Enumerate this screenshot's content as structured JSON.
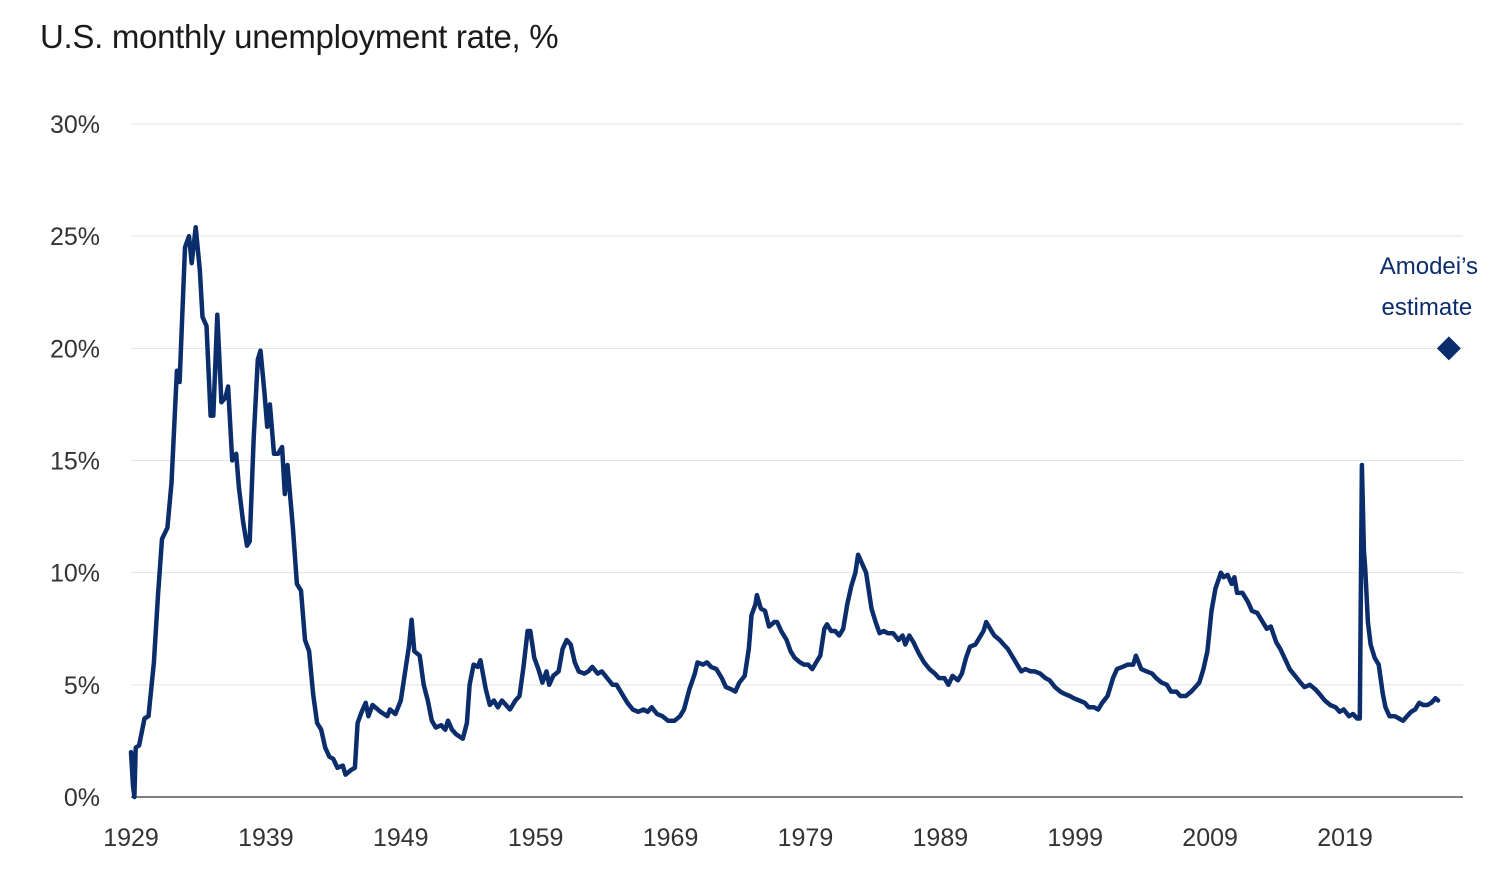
{
  "chart_data": {
    "type": "line",
    "title": "U.S. monthly unemployment rate, %",
    "xlabel": "",
    "ylabel": "",
    "xlim": [
      1929,
      2027.7
    ],
    "ylim": [
      0,
      30
    ],
    "x_ticks": [
      1929,
      1939,
      1949,
      1959,
      1969,
      1979,
      1989,
      1999,
      2009,
      2019
    ],
    "y_ticks": [
      0,
      5,
      10,
      15,
      20,
      25,
      30
    ],
    "y_tick_labels": [
      "0%",
      "5%",
      "10%",
      "15%",
      "20%",
      "25%",
      "30%"
    ],
    "grid": "horizontal",
    "line_color": "#0b2d6b",
    "series": [
      {
        "points": [
          [
            1929.0,
            2.0
          ],
          [
            1929.15,
            0.5
          ],
          [
            1929.25,
            0.0
          ],
          [
            1929.35,
            2.2
          ],
          [
            1929.6,
            2.3
          ],
          [
            1930.0,
            3.5
          ],
          [
            1930.3,
            3.6
          ],
          [
            1930.7,
            6
          ],
          [
            1931.0,
            9
          ],
          [
            1931.3,
            11.5
          ],
          [
            1931.7,
            12
          ],
          [
            1932.0,
            14
          ],
          [
            1932.4,
            19
          ],
          [
            1932.6,
            18.5
          ],
          [
            1933.0,
            24.5
          ],
          [
            1933.3,
            25.0
          ],
          [
            1933.5,
            23.8
          ],
          [
            1933.8,
            25.4
          ],
          [
            1934.1,
            23.5
          ],
          [
            1934.3,
            21.4
          ],
          [
            1934.6,
            21.0
          ],
          [
            1934.9,
            17
          ],
          [
            1935.1,
            17.0
          ],
          [
            1935.4,
            21.5
          ],
          [
            1935.7,
            17.6
          ],
          [
            1936.0,
            17.8
          ],
          [
            1936.2,
            18.3
          ],
          [
            1936.5,
            15.0
          ],
          [
            1936.8,
            15.3
          ],
          [
            1937.0,
            13.8
          ],
          [
            1937.3,
            12.3
          ],
          [
            1937.6,
            11.2
          ],
          [
            1937.8,
            11.4
          ],
          [
            1938.1,
            16
          ],
          [
            1938.4,
            19.5
          ],
          [
            1938.6,
            19.9
          ],
          [
            1938.9,
            18
          ],
          [
            1939.1,
            16.5
          ],
          [
            1939.3,
            17.5
          ],
          [
            1939.6,
            15.3
          ],
          [
            1939.9,
            15.3
          ],
          [
            1940.2,
            15.6
          ],
          [
            1940.4,
            13.5
          ],
          [
            1940.6,
            14.8
          ],
          [
            1940.8,
            13.4
          ],
          [
            1941.0,
            12
          ],
          [
            1941.3,
            9.5
          ],
          [
            1941.6,
            9.2
          ],
          [
            1941.9,
            7
          ],
          [
            1942.2,
            6.5
          ],
          [
            1942.5,
            4.6
          ],
          [
            1942.8,
            3.3
          ],
          [
            1943.1,
            3.0
          ],
          [
            1943.4,
            2.2
          ],
          [
            1943.7,
            1.8
          ],
          [
            1944.0,
            1.7
          ],
          [
            1944.3,
            1.3
          ],
          [
            1944.7,
            1.4
          ],
          [
            1944.9,
            1.0
          ],
          [
            1945.3,
            1.2
          ],
          [
            1945.6,
            1.3
          ],
          [
            1945.8,
            3.3
          ],
          [
            1946.1,
            3.8
          ],
          [
            1946.4,
            4.2
          ],
          [
            1946.6,
            3.6
          ],
          [
            1946.9,
            4.1
          ],
          [
            1947.5,
            3.8
          ],
          [
            1948.0,
            3.6
          ],
          [
            1948.2,
            3.9
          ],
          [
            1948.6,
            3.7
          ],
          [
            1949.0,
            4.3
          ],
          [
            1949.4,
            5.9
          ],
          [
            1949.6,
            6.7
          ],
          [
            1949.8,
            7.9
          ],
          [
            1950.0,
            6.5
          ],
          [
            1950.4,
            6.3
          ],
          [
            1950.7,
            5.0
          ],
          [
            1951.0,
            4.3
          ],
          [
            1951.3,
            3.4
          ],
          [
            1951.6,
            3.1
          ],
          [
            1952.0,
            3.2
          ],
          [
            1952.3,
            3.0
          ],
          [
            1952.5,
            3.4
          ],
          [
            1952.8,
            3.0
          ],
          [
            1953.1,
            2.8
          ],
          [
            1953.6,
            2.6
          ],
          [
            1953.9,
            3.3
          ],
          [
            1954.1,
            5.0
          ],
          [
            1954.4,
            5.9
          ],
          [
            1954.7,
            5.8
          ],
          [
            1954.9,
            6.1
          ],
          [
            1955.3,
            4.8
          ],
          [
            1955.6,
            4.1
          ],
          [
            1955.9,
            4.3
          ],
          [
            1956.2,
            4.0
          ],
          [
            1956.5,
            4.3
          ],
          [
            1956.8,
            4.1
          ],
          [
            1957.1,
            3.9
          ],
          [
            1957.5,
            4.3
          ],
          [
            1957.8,
            4.5
          ],
          [
            1958.1,
            5.8
          ],
          [
            1958.4,
            7.4
          ],
          [
            1958.6,
            7.4
          ],
          [
            1958.9,
            6.2
          ],
          [
            1959.2,
            5.7
          ],
          [
            1959.5,
            5.1
          ],
          [
            1959.8,
            5.6
          ],
          [
            1960.0,
            5.0
          ],
          [
            1960.3,
            5.4
          ],
          [
            1960.7,
            5.6
          ],
          [
            1961.0,
            6.6
          ],
          [
            1961.3,
            7.0
          ],
          [
            1961.6,
            6.8
          ],
          [
            1961.9,
            6.0
          ],
          [
            1962.2,
            5.6
          ],
          [
            1962.6,
            5.5
          ],
          [
            1962.9,
            5.6
          ],
          [
            1963.2,
            5.8
          ],
          [
            1963.6,
            5.5
          ],
          [
            1963.9,
            5.6
          ],
          [
            1964.3,
            5.3
          ],
          [
            1964.7,
            5.0
          ],
          [
            1965.0,
            5.0
          ],
          [
            1965.4,
            4.6
          ],
          [
            1965.8,
            4.2
          ],
          [
            1966.2,
            3.9
          ],
          [
            1966.6,
            3.8
          ],
          [
            1967.0,
            3.9
          ],
          [
            1967.3,
            3.8
          ],
          [
            1967.6,
            4.0
          ],
          [
            1968.0,
            3.7
          ],
          [
            1968.4,
            3.6
          ],
          [
            1968.8,
            3.4
          ],
          [
            1969.3,
            3.4
          ],
          [
            1969.7,
            3.6
          ],
          [
            1970.0,
            3.9
          ],
          [
            1970.4,
            4.8
          ],
          [
            1970.8,
            5.5
          ],
          [
            1971.0,
            6.0
          ],
          [
            1971.4,
            5.9
          ],
          [
            1971.7,
            6.0
          ],
          [
            1972.0,
            5.8
          ],
          [
            1972.4,
            5.7
          ],
          [
            1972.8,
            5.3
          ],
          [
            1973.1,
            4.9
          ],
          [
            1973.5,
            4.8
          ],
          [
            1973.8,
            4.7
          ],
          [
            1974.1,
            5.1
          ],
          [
            1974.5,
            5.4
          ],
          [
            1974.8,
            6.6
          ],
          [
            1975.0,
            8.1
          ],
          [
            1975.3,
            8.6
          ],
          [
            1975.4,
            9.0
          ],
          [
            1975.7,
            8.4
          ],
          [
            1976.0,
            8.3
          ],
          [
            1976.3,
            7.6
          ],
          [
            1976.7,
            7.8
          ],
          [
            1976.9,
            7.8
          ],
          [
            1977.2,
            7.4
          ],
          [
            1977.6,
            7.0
          ],
          [
            1977.9,
            6.5
          ],
          [
            1978.2,
            6.2
          ],
          [
            1978.6,
            6.0
          ],
          [
            1978.9,
            5.9
          ],
          [
            1979.2,
            5.9
          ],
          [
            1979.5,
            5.7
          ],
          [
            1979.8,
            6.0
          ],
          [
            1980.1,
            6.3
          ],
          [
            1980.4,
            7.5
          ],
          [
            1980.6,
            7.7
          ],
          [
            1980.9,
            7.4
          ],
          [
            1981.2,
            7.4
          ],
          [
            1981.5,
            7.2
          ],
          [
            1981.8,
            7.5
          ],
          [
            1982.1,
            8.6
          ],
          [
            1982.4,
            9.4
          ],
          [
            1982.7,
            10.0
          ],
          [
            1982.9,
            10.8
          ],
          [
            1983.2,
            10.4
          ],
          [
            1983.5,
            10.0
          ],
          [
            1983.7,
            9.2
          ],
          [
            1983.9,
            8.4
          ],
          [
            1984.2,
            7.8
          ],
          [
            1984.5,
            7.3
          ],
          [
            1984.8,
            7.4
          ],
          [
            1985.1,
            7.3
          ],
          [
            1985.5,
            7.3
          ],
          [
            1985.9,
            7.0
          ],
          [
            1986.2,
            7.2
          ],
          [
            1986.4,
            6.8
          ],
          [
            1986.7,
            7.2
          ],
          [
            1987.0,
            6.9
          ],
          [
            1987.4,
            6.4
          ],
          [
            1987.8,
            6.0
          ],
          [
            1988.2,
            5.7
          ],
          [
            1988.6,
            5.5
          ],
          [
            1988.9,
            5.3
          ],
          [
            1989.3,
            5.3
          ],
          [
            1989.6,
            5.0
          ],
          [
            1989.9,
            5.4
          ],
          [
            1990.3,
            5.2
          ],
          [
            1990.6,
            5.5
          ],
          [
            1990.9,
            6.2
          ],
          [
            1991.2,
            6.7
          ],
          [
            1991.6,
            6.8
          ],
          [
            1991.9,
            7.1
          ],
          [
            1992.2,
            7.4
          ],
          [
            1992.4,
            7.8
          ],
          [
            1992.7,
            7.5
          ],
          [
            1993.0,
            7.2
          ],
          [
            1993.4,
            7.0
          ],
          [
            1993.7,
            6.8
          ],
          [
            1994.0,
            6.6
          ],
          [
            1994.4,
            6.2
          ],
          [
            1994.7,
            5.9
          ],
          [
            1995.0,
            5.6
          ],
          [
            1995.3,
            5.7
          ],
          [
            1995.7,
            5.6
          ],
          [
            1996.0,
            5.6
          ],
          [
            1996.4,
            5.5
          ],
          [
            1996.8,
            5.3
          ],
          [
            1997.1,
            5.2
          ],
          [
            1997.5,
            4.9
          ],
          [
            1997.9,
            4.7
          ],
          [
            1998.2,
            4.6
          ],
          [
            1998.6,
            4.5
          ],
          [
            1998.9,
            4.4
          ],
          [
            1999.3,
            4.3
          ],
          [
            1999.7,
            4.2
          ],
          [
            2000.0,
            4.0
          ],
          [
            2000.4,
            4.0
          ],
          [
            2000.7,
            3.9
          ],
          [
            2001.0,
            4.2
          ],
          [
            2001.4,
            4.5
          ],
          [
            2001.8,
            5.3
          ],
          [
            2002.1,
            5.7
          ],
          [
            2002.5,
            5.8
          ],
          [
            2002.9,
            5.9
          ],
          [
            2003.3,
            5.9
          ],
          [
            2003.5,
            6.3
          ],
          [
            2003.9,
            5.7
          ],
          [
            2004.3,
            5.6
          ],
          [
            2004.7,
            5.5
          ],
          [
            2005.0,
            5.3
          ],
          [
            2005.4,
            5.1
          ],
          [
            2005.8,
            5.0
          ],
          [
            2006.1,
            4.7
          ],
          [
            2006.5,
            4.7
          ],
          [
            2006.8,
            4.5
          ],
          [
            2007.2,
            4.5
          ],
          [
            2007.6,
            4.7
          ],
          [
            2007.9,
            4.9
          ],
          [
            2008.2,
            5.1
          ],
          [
            2008.5,
            5.7
          ],
          [
            2008.8,
            6.5
          ],
          [
            2009.1,
            8.3
          ],
          [
            2009.4,
            9.3
          ],
          [
            2009.8,
            10.0
          ],
          [
            2010.0,
            9.8
          ],
          [
            2010.3,
            9.9
          ],
          [
            2010.6,
            9.5
          ],
          [
            2010.8,
            9.8
          ],
          [
            2011.0,
            9.1
          ],
          [
            2011.4,
            9.1
          ],
          [
            2011.8,
            8.7
          ],
          [
            2012.1,
            8.3
          ],
          [
            2012.5,
            8.2
          ],
          [
            2012.9,
            7.8
          ],
          [
            2013.2,
            7.5
          ],
          [
            2013.5,
            7.6
          ],
          [
            2013.9,
            6.9
          ],
          [
            2014.2,
            6.6
          ],
          [
            2014.6,
            6.1
          ],
          [
            2014.9,
            5.7
          ],
          [
            2015.3,
            5.4
          ],
          [
            2015.7,
            5.1
          ],
          [
            2016.0,
            4.9
          ],
          [
            2016.4,
            5.0
          ],
          [
            2016.8,
            4.8
          ],
          [
            2017.1,
            4.6
          ],
          [
            2017.5,
            4.3
          ],
          [
            2017.9,
            4.1
          ],
          [
            2018.3,
            4.0
          ],
          [
            2018.6,
            3.8
          ],
          [
            2018.9,
            3.9
          ],
          [
            2019.3,
            3.6
          ],
          [
            2019.6,
            3.7
          ],
          [
            2019.9,
            3.5
          ],
          [
            2020.1,
            3.5
          ],
          [
            2020.25,
            14.8
          ],
          [
            2020.4,
            11.0
          ],
          [
            2020.5,
            10.2
          ],
          [
            2020.7,
            7.8
          ],
          [
            2020.9,
            6.8
          ],
          [
            2021.2,
            6.2
          ],
          [
            2021.5,
            5.9
          ],
          [
            2021.8,
            4.6
          ],
          [
            2022.0,
            4.0
          ],
          [
            2022.3,
            3.6
          ],
          [
            2022.7,
            3.6
          ],
          [
            2023.0,
            3.5
          ],
          [
            2023.3,
            3.4
          ],
          [
            2023.6,
            3.6
          ],
          [
            2023.9,
            3.8
          ],
          [
            2024.2,
            3.9
          ],
          [
            2024.5,
            4.2
          ],
          [
            2024.8,
            4.1
          ],
          [
            2025.1,
            4.1
          ],
          [
            2025.4,
            4.2
          ],
          [
            2025.7,
            4.4
          ],
          [
            2025.9,
            4.3
          ]
        ]
      }
    ],
    "annotation": {
      "label_line1": "Amodei’s",
      "label_line2": "estimate",
      "x": 2026.7,
      "y": 20,
      "marker": "diamond"
    }
  }
}
